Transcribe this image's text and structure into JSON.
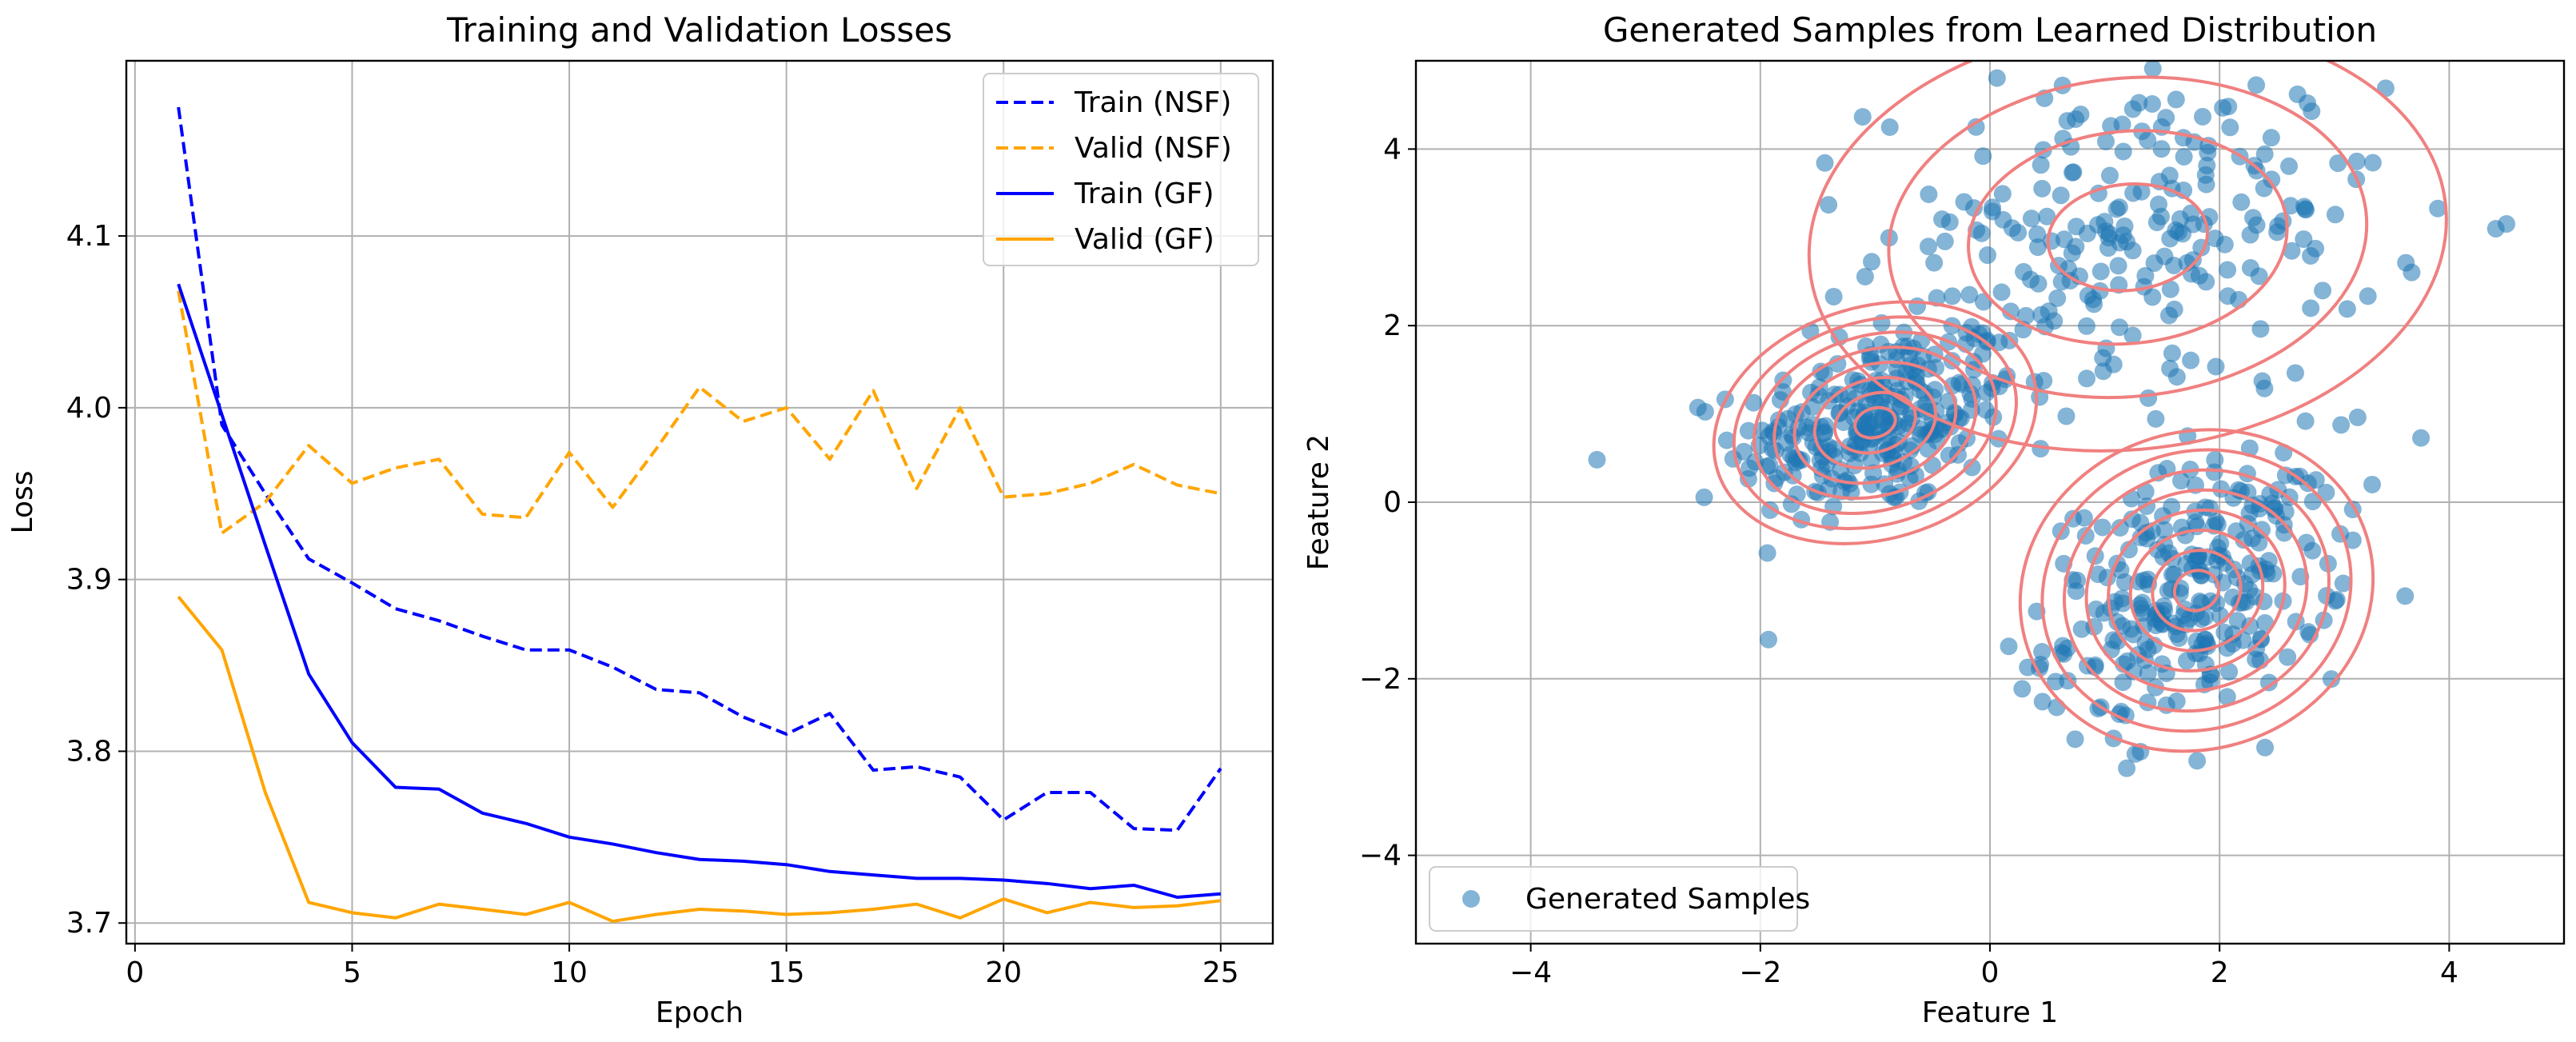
{
  "chart_data": [
    {
      "type": "line",
      "title": "Training and Validation Losses",
      "xlabel": "Epoch",
      "ylabel": "Loss",
      "xlim": [
        -0.2,
        26.2
      ],
      "ylim": [
        3.688,
        4.202
      ],
      "xticks": [
        0,
        5,
        10,
        15,
        20,
        25
      ],
      "xtick_labels": [
        "0",
        "5",
        "10",
        "15",
        "20",
        "25"
      ],
      "yticks": [
        3.7,
        3.8,
        3.9,
        4.0,
        4.1
      ],
      "ytick_labels": [
        "3.7",
        "3.8",
        "3.9",
        "4.0",
        "4.1"
      ],
      "grid": true,
      "legend_position": "top-right",
      "x": [
        1,
        2,
        3,
        4,
        5,
        6,
        7,
        8,
        9,
        10,
        11,
        12,
        13,
        14,
        15,
        16,
        17,
        18,
        19,
        20,
        21,
        22,
        23,
        24,
        25
      ],
      "series": [
        {
          "name": "Train (NSF)",
          "color": "#0000ff",
          "dash": true,
          "values": [
            4.175,
            3.99,
            3.95,
            3.912,
            3.898,
            3.883,
            3.876,
            3.867,
            3.859,
            3.859,
            3.849,
            3.836,
            3.834,
            3.82,
            3.81,
            3.822,
            3.789,
            3.791,
            3.785,
            3.76,
            3.776,
            3.776,
            3.755,
            3.754,
            3.79
          ]
        },
        {
          "name": "Valid (NSF)",
          "color": "#ffa500",
          "dash": true,
          "values": [
            4.068,
            3.927,
            3.945,
            3.978,
            3.956,
            3.965,
            3.97,
            3.938,
            3.936,
            3.974,
            3.942,
            3.976,
            4.012,
            3.992,
            4.0,
            3.97,
            4.01,
            3.953,
            4.0,
            3.948,
            3.95,
            3.956,
            3.967,
            3.955,
            3.95
          ]
        },
        {
          "name": "Train (GF)",
          "color": "#0000ff",
          "dash": false,
          "values": [
            4.072,
            3.996,
            3.92,
            3.845,
            3.805,
            3.779,
            3.778,
            3.764,
            3.758,
            3.75,
            3.746,
            3.741,
            3.737,
            3.736,
            3.734,
            3.73,
            3.728,
            3.726,
            3.726,
            3.725,
            3.723,
            3.72,
            3.722,
            3.715,
            3.717
          ]
        },
        {
          "name": "Valid (GF)",
          "color": "#ffa500",
          "dash": false,
          "values": [
            3.89,
            3.859,
            3.776,
            3.712,
            3.706,
            3.703,
            3.711,
            3.708,
            3.705,
            3.712,
            3.701,
            3.705,
            3.708,
            3.707,
            3.705,
            3.706,
            3.708,
            3.711,
            3.703,
            3.714,
            3.706,
            3.712,
            3.709,
            3.71,
            3.713
          ]
        }
      ]
    },
    {
      "type": "scatter",
      "title": "Generated Samples from Learned Distribution",
      "xlabel": "Feature 1",
      "ylabel": "Feature 2",
      "xlim": [
        -5,
        5
      ],
      "ylim": [
        -5,
        5
      ],
      "xticks": [
        -4,
        -2,
        0,
        2,
        4
      ],
      "xtick_labels": [
        "−4",
        "−2",
        "0",
        "2",
        "4"
      ],
      "yticks": [
        -4,
        -2,
        0,
        2,
        4
      ],
      "ytick_labels": [
        "−4",
        "−2",
        "0",
        "2",
        "4"
      ],
      "grid": true,
      "legend_position": "bottom-left",
      "series": [
        {
          "name": "Generated Samples",
          "color": "#1f77b4",
          "alpha": 0.55,
          "clusters": [
            {
              "center": [
                -1.0,
                0.9
              ],
              "std": [
                0.6,
                0.55
              ],
              "corr": 0.3,
              "count": 280
            },
            {
              "center": [
                1.8,
                -1.0
              ],
              "std": [
                0.65,
                0.75
              ],
              "corr": 0.35,
              "count": 280
            },
            {
              "center": [
                1.2,
                3.0
              ],
              "std": [
                1.1,
                0.95
              ],
              "corr": 0.1,
              "count": 240
            }
          ]
        }
      ],
      "contours": {
        "color": "#f08080",
        "levels": 8
      }
    }
  ]
}
